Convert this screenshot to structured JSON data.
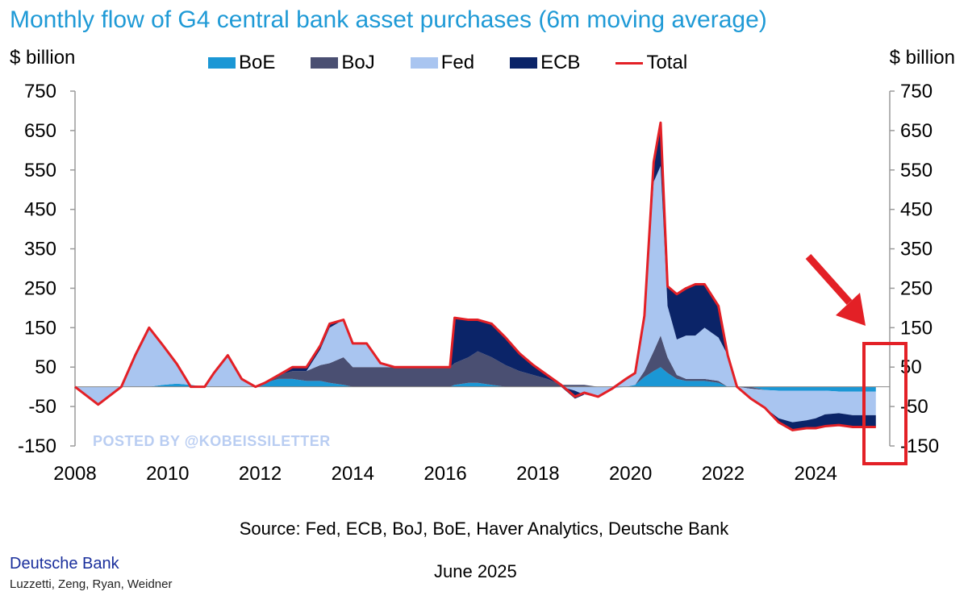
{
  "header": {
    "title": "Monthly flow of G4 central bank asset purchases (6m moving average)"
  },
  "footer": {
    "source": "Source: Fed, ECB, BoJ, BoE, Haver Analytics, Deutsche Bank",
    "brand": "Deutsche Bank",
    "authors": "Luzzetti, Zeng, Ryan, Weidner",
    "date": "June 2025"
  },
  "watermark": "POSTED BY @KOBEISSILETTER",
  "colors": {
    "boe": "#1b97d5",
    "boj": "#4a4f72",
    "fed": "#a9c5f0",
    "ecb": "#0b2468",
    "total": "#e32026",
    "highlight": "#e32026",
    "title": "#1f9ad6"
  },
  "icons": {
    "arrow": "red-arrow-icon",
    "highlight": "highlight-box"
  },
  "chart_data": {
    "type": "area",
    "title": "Monthly flow of G4 central bank asset purchases (6m moving average)",
    "ylabel_left": "$ billion",
    "ylabel_right": "$ billion",
    "ylim": [
      -150,
      750
    ],
    "yticks": [
      750,
      650,
      550,
      450,
      350,
      250,
      150,
      50,
      -50,
      -150
    ],
    "xlim": [
      2008,
      2025.6
    ],
    "xticks": [
      "2008",
      "2010",
      "2012",
      "2014",
      "2016",
      "2018",
      "2020",
      "2022",
      "2024"
    ],
    "legend": [
      "BoE",
      "BoJ",
      "Fed",
      "ECB",
      "Total"
    ],
    "x": [
      2008.0,
      2008.5,
      2009.0,
      2009.3,
      2009.6,
      2009.9,
      2010.2,
      2010.5,
      2010.8,
      2011.0,
      2011.3,
      2011.6,
      2011.9,
      2012.1,
      2012.4,
      2012.7,
      2013.0,
      2013.3,
      2013.5,
      2013.8,
      2014.0,
      2014.3,
      2014.6,
      2014.9,
      2015.2,
      2015.5,
      2015.8,
      2016.1,
      2016.2,
      2016.5,
      2016.7,
      2017.0,
      2017.3,
      2017.6,
      2017.9,
      2018.2,
      2018.5,
      2018.8,
      2019.0,
      2019.3,
      2019.6,
      2019.9,
      2020.1,
      2020.3,
      2020.5,
      2020.65,
      2020.8,
      2021.0,
      2021.2,
      2021.4,
      2021.6,
      2021.9,
      2022.1,
      2022.3,
      2022.6,
      2022.9,
      2023.2,
      2023.5,
      2023.8,
      2024.0,
      2024.2,
      2024.5,
      2024.8,
      2025.0,
      2025.3
    ],
    "series": [
      {
        "name": "BoE",
        "values": [
          0,
          0,
          0,
          0,
          0,
          5,
          8,
          5,
          0,
          0,
          0,
          0,
          0,
          10,
          20,
          20,
          15,
          15,
          10,
          5,
          0,
          0,
          0,
          0,
          0,
          0,
          0,
          0,
          5,
          10,
          10,
          5,
          0,
          0,
          0,
          0,
          0,
          0,
          0,
          0,
          0,
          0,
          5,
          25,
          40,
          50,
          35,
          20,
          15,
          15,
          15,
          10,
          0,
          0,
          0,
          -8,
          -10,
          -10,
          -10,
          -10,
          -10,
          -12,
          -12,
          -12,
          -12
        ]
      },
      {
        "name": "BoJ",
        "values": [
          0,
          0,
          0,
          0,
          0,
          0,
          0,
          0,
          0,
          0,
          0,
          0,
          0,
          0,
          10,
          20,
          25,
          40,
          50,
          70,
          50,
          50,
          50,
          50,
          50,
          50,
          50,
          50,
          55,
          65,
          80,
          70,
          55,
          40,
          30,
          20,
          5,
          5,
          5,
          0,
          0,
          0,
          0,
          15,
          50,
          80,
          40,
          10,
          5,
          5,
          5,
          5,
          0,
          0,
          -5,
          0,
          0,
          0,
          0,
          0,
          0,
          0,
          0,
          0,
          0
        ]
      },
      {
        "name": "Fed",
        "values": [
          0,
          -45,
          0,
          80,
          150,
          100,
          50,
          0,
          0,
          35,
          80,
          20,
          0,
          0,
          0,
          0,
          0,
          40,
          90,
          95,
          60,
          60,
          10,
          0,
          0,
          0,
          0,
          0,
          0,
          0,
          0,
          0,
          0,
          0,
          0,
          0,
          0,
          -10,
          -20,
          -25,
          -5,
          20,
          30,
          140,
          430,
          430,
          130,
          90,
          110,
          110,
          130,
          110,
          80,
          0,
          -25,
          -45,
          -70,
          -80,
          -75,
          -70,
          -60,
          -55,
          -60,
          -60,
          -60
        ]
      },
      {
        "name": "ECB",
        "values": [
          0,
          0,
          0,
          0,
          0,
          0,
          0,
          0,
          0,
          0,
          0,
          0,
          0,
          0,
          0,
          10,
          10,
          10,
          10,
          0,
          0,
          0,
          0,
          0,
          0,
          0,
          0,
          0,
          115,
          95,
          80,
          85,
          70,
          45,
          25,
          10,
          0,
          -20,
          0,
          0,
          0,
          0,
          0,
          0,
          50,
          110,
          50,
          115,
          120,
          130,
          110,
          80,
          0,
          0,
          0,
          0,
          -10,
          -20,
          -20,
          -25,
          -30,
          -30,
          -30,
          -30,
          -30
        ]
      }
    ],
    "total": [
      0,
      -45,
      0,
      80,
      150,
      105,
      58,
      0,
      0,
      35,
      80,
      20,
      0,
      10,
      30,
      50,
      50,
      105,
      160,
      170,
      110,
      110,
      60,
      50,
      50,
      50,
      50,
      50,
      175,
      170,
      170,
      160,
      125,
      85,
      55,
      30,
      5,
      -25,
      -15,
      -25,
      -5,
      20,
      35,
      180,
      570,
      670,
      255,
      235,
      250,
      260,
      260,
      205,
      80,
      0,
      -30,
      -53,
      -90,
      -110,
      -105,
      -105,
      -100,
      -97,
      -102,
      -102,
      -102
    ]
  }
}
